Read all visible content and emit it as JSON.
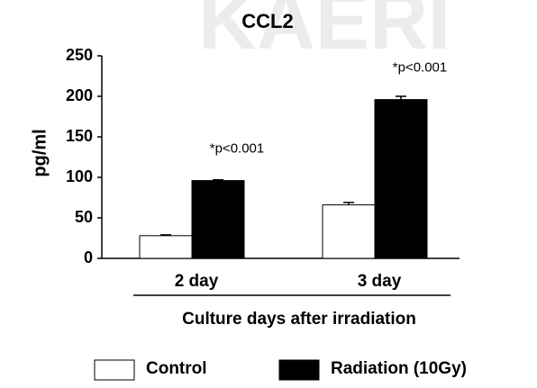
{
  "watermark": "KAERI",
  "chart_data": {
    "type": "bar",
    "title": "CCL2",
    "y_label": "pg/ml",
    "x_label": "Culture days after irradiation",
    "categories": [
      "2 day",
      "3 day"
    ],
    "series": [
      {
        "name": "Control",
        "color": "#ffffff",
        "values": [
          28,
          66
        ],
        "errors": [
          1,
          3
        ]
      },
      {
        "name": "Radiation (10Gy)",
        "color": "#000000",
        "values": [
          96,
          196
        ],
        "errors": [
          1,
          4
        ]
      }
    ],
    "annotations": [
      "*p<0.001",
      "*p<0.001"
    ],
    "ylim": [
      0,
      250
    ],
    "yticks": [
      0,
      50,
      100,
      150,
      200,
      250
    ],
    "grid": false
  }
}
